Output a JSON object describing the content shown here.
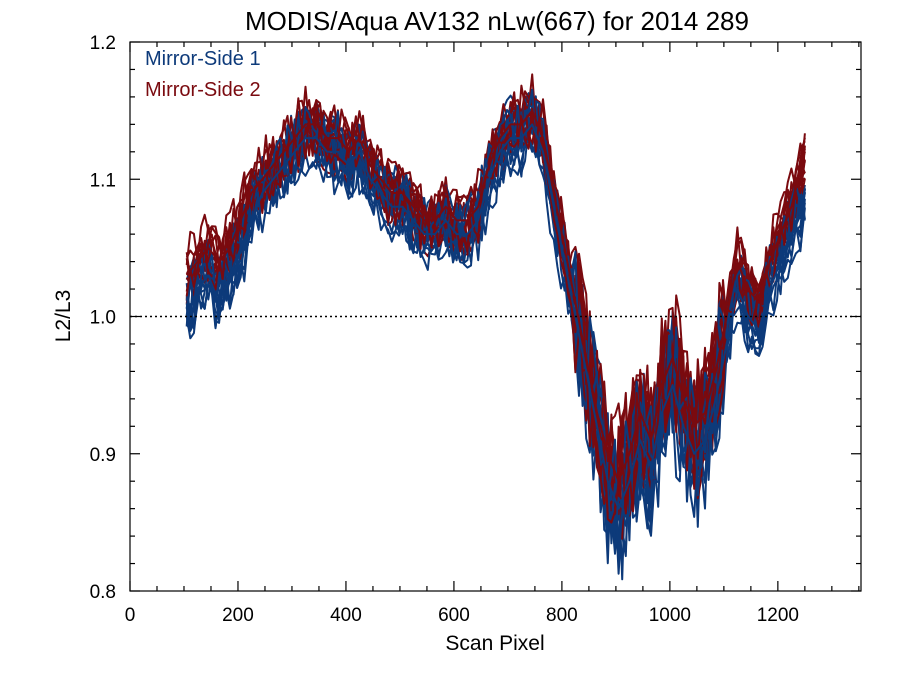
{
  "chart_data": {
    "type": "line",
    "title": "MODIS/Aqua AV132 nLw(667) for 2014 289",
    "xlabel": "Scan Pixel",
    "ylabel": "L2/L3",
    "xlim": [
      0,
      1354
    ],
    "ylim": [
      0.8,
      1.2
    ],
    "xticks": [
      0,
      200,
      400,
      600,
      800,
      1000,
      1200
    ],
    "yticks": [
      0.8,
      0.9,
      1.0,
      1.1,
      1.2
    ],
    "xtick_labels": [
      "0",
      "200",
      "400",
      "600",
      "800",
      "1000",
      "1200"
    ],
    "ytick_labels": [
      "0.8",
      "0.9",
      "1.0",
      "1.1",
      "1.2"
    ],
    "reference_line": 1.0,
    "legend_position": "top-left",
    "series_colors": {
      "Mirror-Side 1": "#0d3a7a",
      "Mirror-Side 2": "#7a0a0f"
    },
    "x": [
      105,
      125,
      145,
      165,
      185,
      205,
      225,
      245,
      265,
      285,
      305,
      325,
      345,
      365,
      385,
      405,
      425,
      445,
      465,
      485,
      505,
      525,
      545,
      565,
      585,
      605,
      625,
      645,
      665,
      685,
      705,
      725,
      745,
      765,
      785,
      805,
      825,
      845,
      865,
      885,
      905,
      925,
      945,
      965,
      985,
      1005,
      1025,
      1045,
      1065,
      1085,
      1105,
      1125,
      1145,
      1165,
      1185,
      1205,
      1225,
      1250
    ],
    "series": [
      {
        "name": "Mirror-Side 1",
        "values": [
          1.0,
          1.02,
          1.03,
          1.01,
          1.03,
          1.05,
          1.07,
          1.09,
          1.1,
          1.11,
          1.12,
          1.13,
          1.13,
          1.12,
          1.12,
          1.11,
          1.12,
          1.1,
          1.09,
          1.08,
          1.08,
          1.07,
          1.06,
          1.06,
          1.07,
          1.06,
          1.06,
          1.07,
          1.1,
          1.12,
          1.13,
          1.13,
          1.14,
          1.12,
          1.08,
          1.04,
          1.0,
          0.96,
          0.92,
          0.88,
          0.86,
          0.88,
          0.91,
          0.89,
          0.93,
          0.95,
          0.92,
          0.9,
          0.91,
          0.94,
          0.98,
          1.02,
          1.0,
          0.99,
          1.02,
          1.04,
          1.06,
          1.08
        ]
      },
      {
        "name": "Mirror-Side 2",
        "values": [
          1.03,
          1.04,
          1.05,
          1.04,
          1.05,
          1.07,
          1.09,
          1.1,
          1.11,
          1.12,
          1.13,
          1.14,
          1.14,
          1.13,
          1.13,
          1.12,
          1.13,
          1.11,
          1.1,
          1.09,
          1.09,
          1.08,
          1.07,
          1.07,
          1.08,
          1.07,
          1.07,
          1.08,
          1.11,
          1.13,
          1.14,
          1.14,
          1.15,
          1.13,
          1.09,
          1.05,
          1.01,
          0.97,
          0.93,
          0.9,
          0.88,
          0.9,
          0.93,
          0.91,
          0.95,
          0.97,
          0.94,
          0.92,
          0.93,
          0.96,
          1.0,
          1.04,
          1.02,
          1.01,
          1.04,
          1.06,
          1.08,
          1.12
        ]
      }
    ]
  }
}
